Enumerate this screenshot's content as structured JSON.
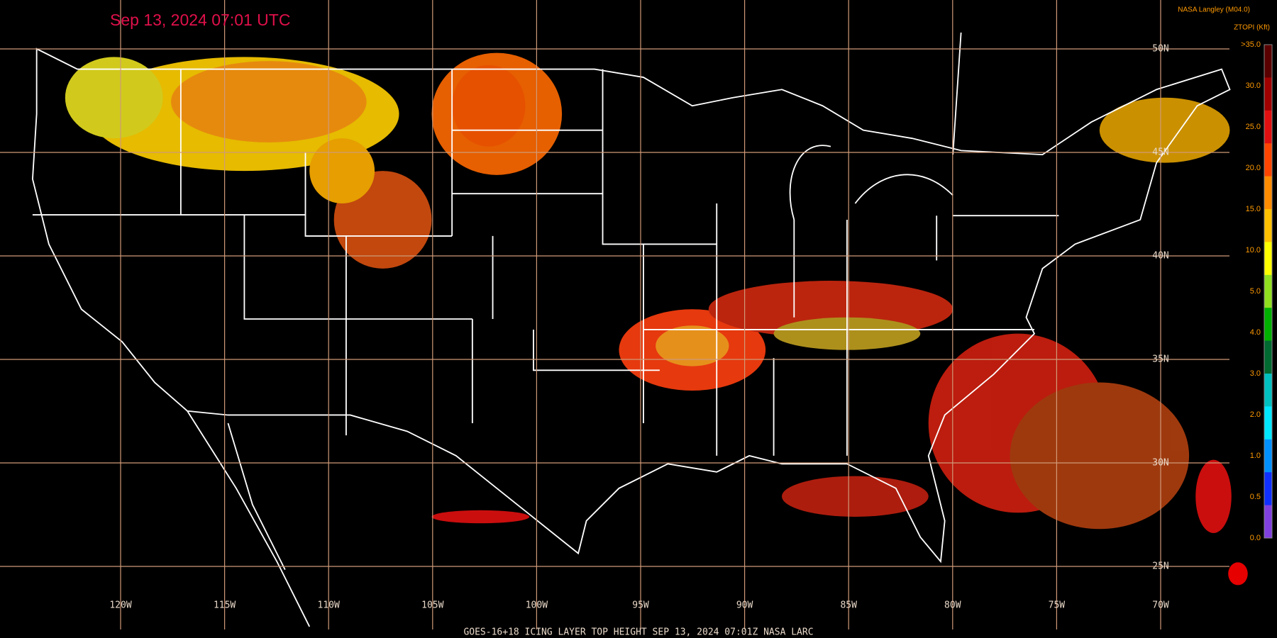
{
  "header": {
    "timestamp": "Sep 13, 2024 07:01 UTC",
    "credit": "NASA Langley (M04.0)"
  },
  "legend": {
    "title": "ZTOPI (Kft)",
    "labels": [
      ">35.0",
      "30.0",
      "25.0",
      "20.0",
      "15.0",
      "10.0",
      "5.0",
      "4.0",
      "3.0",
      "2.0",
      "1.0",
      "0.5",
      "0.0"
    ],
    "colors": [
      "#5a0000",
      "#a00000",
      "#e01010",
      "#ff4500",
      "#ff8c00",
      "#ffc000",
      "#ffff00",
      "#90e020",
      "#00b000",
      "#006a30",
      "#00c0c0",
      "#00e8ff",
      "#0090ff",
      "#1030ff",
      "#8040e0"
    ]
  },
  "map": {
    "longitude_labels": [
      "120W",
      "115W",
      "110W",
      "105W",
      "100W",
      "95W",
      "90W",
      "85W",
      "80W",
      "75W",
      "70W"
    ],
    "latitude_labels": [
      "50N",
      "45N",
      "40N",
      "35N",
      "30N",
      "25N"
    ]
  },
  "footer": {
    "caption": "GOES-16+18  ICING LAYER TOP HEIGHT   SEP 13, 2024 07:01Z   NASA LARC"
  }
}
